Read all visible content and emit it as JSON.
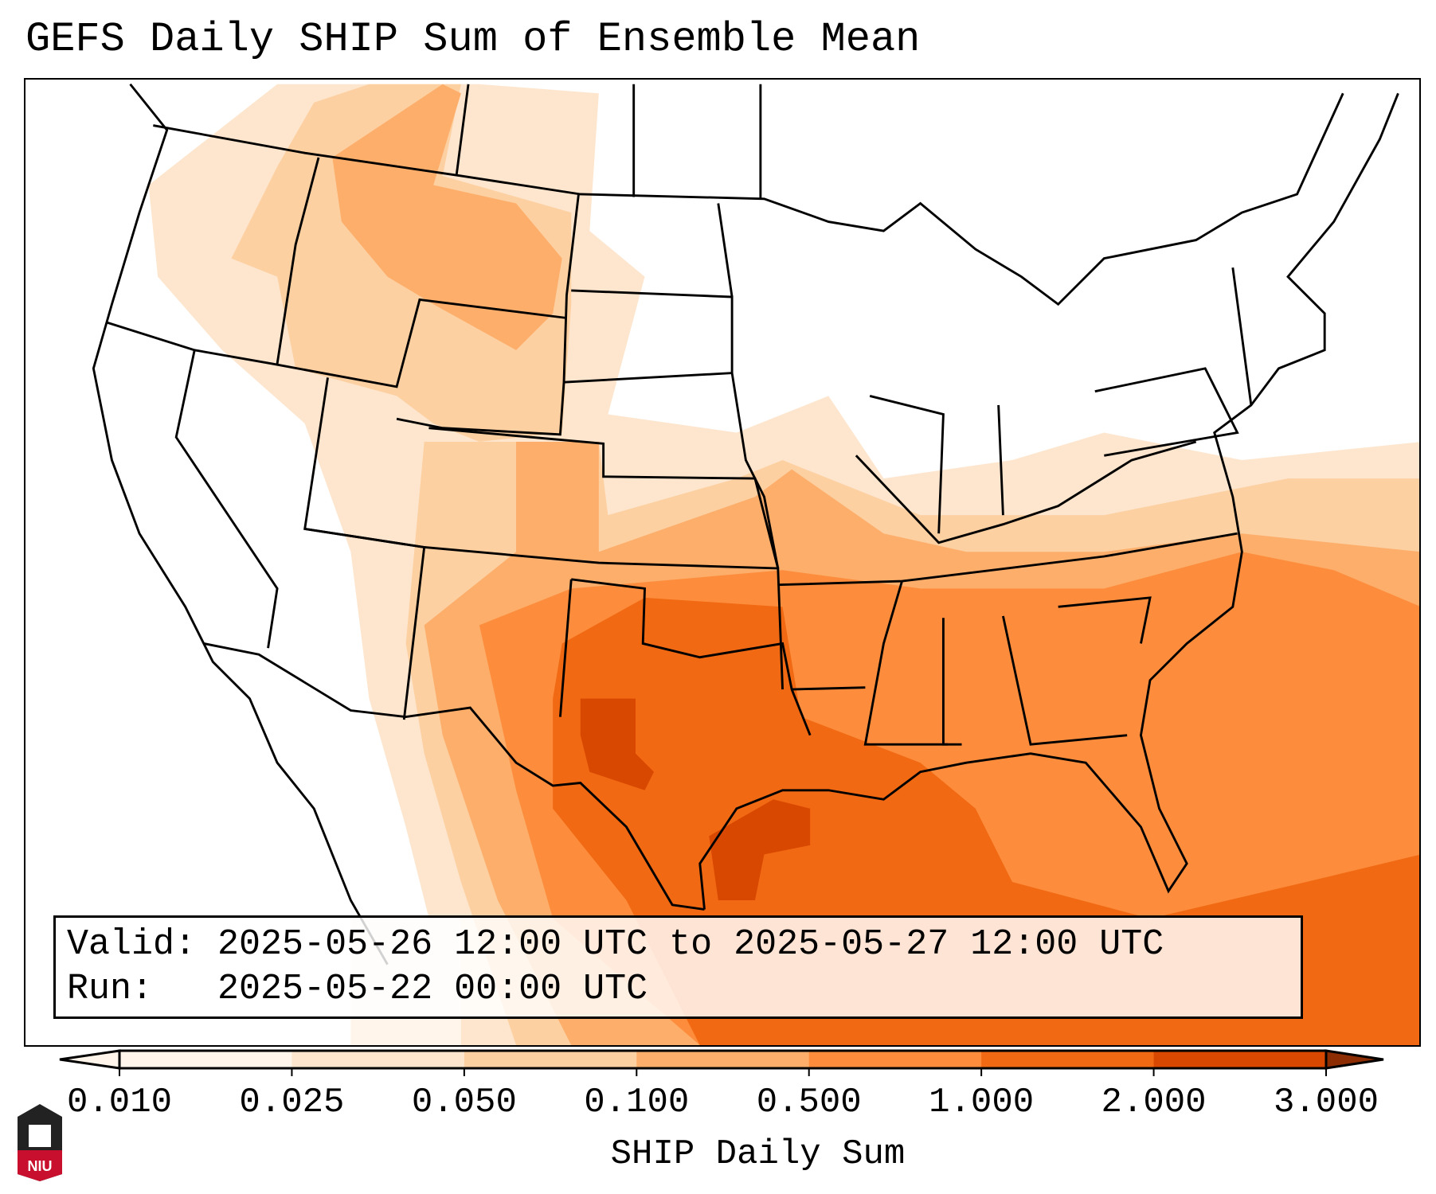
{
  "title": "GEFS Daily SHIP Sum of Ensemble Mean",
  "info": {
    "valid_label": "Valid:",
    "valid_value": "2025-05-26 12:00 UTC to 2025-05-27 12:00 UTC",
    "run_label": "Run:",
    "run_value": "2025-05-22 00:00 UTC"
  },
  "colorbar": {
    "label": "SHIP Daily Sum",
    "ticks": [
      "0.010",
      "0.025",
      "0.050",
      "0.100",
      "0.500",
      "1.000",
      "2.000",
      "3.000"
    ],
    "colors": [
      "#fff5eb",
      "#fee6ce",
      "#fdd0a2",
      "#fdae6b",
      "#fd8d3c",
      "#f16913",
      "#d94801",
      "#8c2d04"
    ],
    "extend": "both"
  },
  "logo": {
    "text": "NIU"
  }
}
